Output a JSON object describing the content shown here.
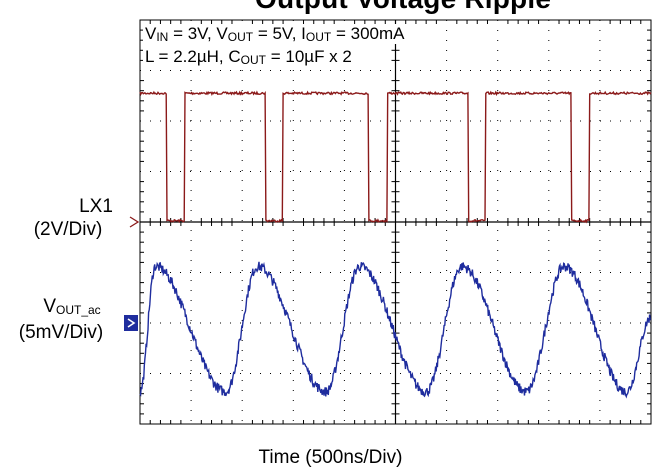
{
  "title": "Output Voltage Ripple",
  "conditions": {
    "line1": [
      {
        "main": "V",
        "sub": "IN"
      },
      {
        "text": " = 3V, "
      },
      {
        "main": "V",
        "sub": "OUT"
      },
      {
        "text": " = 5V, "
      },
      {
        "main": "I",
        "sub": "OUT"
      },
      {
        "text": " = 300mA"
      }
    ],
    "line2": [
      {
        "text": "L = 2.2µH, "
      },
      {
        "main": "C",
        "sub": "OUT"
      },
      {
        "text": " = 10µF x 2"
      }
    ]
  },
  "labels": {
    "lx1_name": "LX1",
    "lx1_scale": "(2V/Div)",
    "vout_main": "V",
    "vout_sub": "OUT_ac",
    "vout_scale": "(5mV/Div)",
    "xlabel": "Time (500ns/Div)"
  },
  "colors": {
    "lx1": "#8b1a1a",
    "vout": "#1f2d9e",
    "grid": "#000000"
  },
  "chart_data": {
    "type": "line",
    "divisions": {
      "x": 10,
      "y": 8
    },
    "x_units": "ns",
    "x_per_div": 500,
    "xlim": [
      0,
      5000
    ],
    "series": [
      {
        "name": "LX1",
        "units": "V",
        "per_div": 2,
        "waveform": "square",
        "high": 5.1,
        "low": 0.05,
        "period": 1980,
        "rise_times": [
          440,
          2420,
          4400
        ],
        "fall_times": [
          260,
          2240,
          4220
        ],
        "rise_times_2": [
          1400,
          3380
        ],
        "fall_times_2": [
          1230,
          3210
        ]
      },
      {
        "name": "VOUT_ac",
        "units": "mV",
        "per_div": 5,
        "waveform": "triangle",
        "max": 5.6,
        "min": -6.8,
        "peak_times": [
          150,
          1150,
          2150,
          3150,
          4150
        ],
        "trough_times": [
          0,
          840,
          1820,
          2800,
          3780,
          4760
        ]
      }
    ]
  }
}
